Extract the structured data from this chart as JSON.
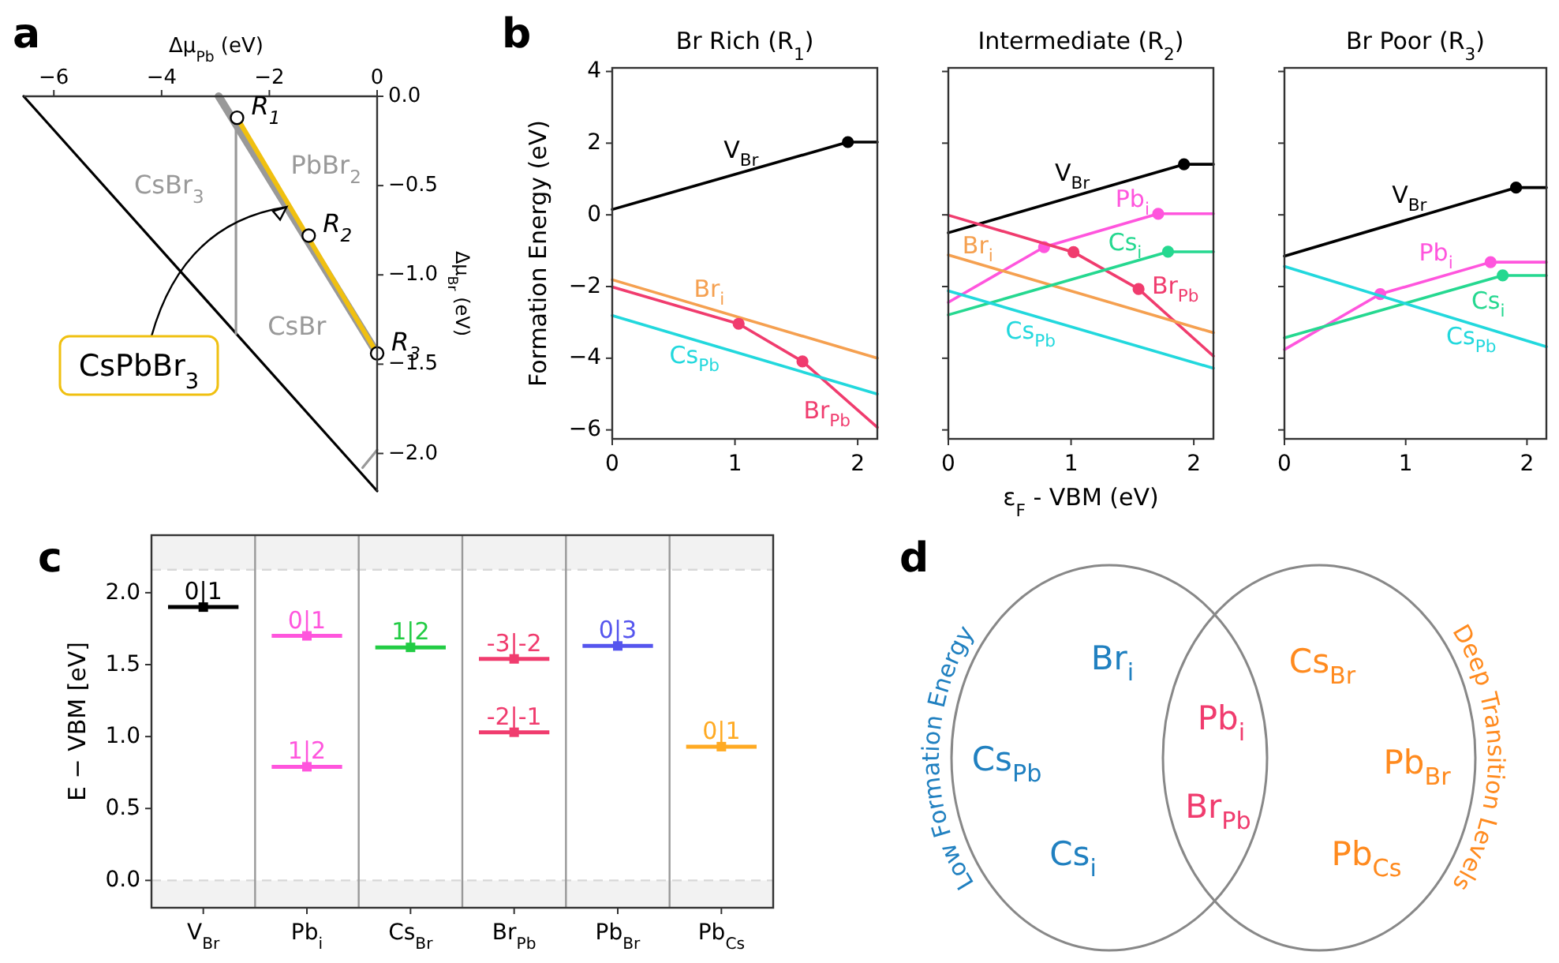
{
  "chart_data": [
    {
      "type": "line",
      "xlabel": "Δμ$_{Pb}$ (eV)",
      "ylabel": "Δμ$_{Br}$ (eV)",
      "xlim": [
        -6.56,
        0
      ],
      "xticks": [
        {
          "value": -6,
          "label": "−6"
        },
        {
          "value": -4,
          "label": "−4"
        },
        {
          "value": -2,
          "label": "−2"
        },
        0
      ],
      "ylim": [
        -2.21,
        0
      ],
      "yticks": [
        {
          "value": 0,
          "label": "0.0"
        },
        {
          "value": -0.5,
          "label": "−0.5"
        },
        {
          "value": -1,
          "label": "−1.0"
        },
        {
          "value": -1.5,
          "label": "−1.5"
        },
        {
          "value": -2,
          "label": "−2.0"
        }
      ],
      "annotations": [
        "a",
        "CsBr$_{3}$",
        "PbBr$_{2}$",
        "CsBr",
        {
          "text": "CsPbBr$_{3}$",
          "x": -1.68,
          "y": -0.62
        },
        {
          "text": "R$_{1}$",
          "x": -2.6,
          "y": -0.12
        },
        {
          "text": "R$_{2}$",
          "x": -1.27,
          "y": -0.78
        },
        {
          "text": "R$_{3}$",
          "x": 0,
          "y": -1.44
        }
      ],
      "series": [
        {
          "color": "#000000",
          "x": [
            -6.56,
            0
          ],
          "values": [
            0,
            -2.21
          ]
        },
        {
          "color": "#999999",
          "x": [
            -2.94,
            0
          ],
          "values": [
            0,
            -1.44
          ]
        },
        {
          "color": "#999999",
          "x": [
            -2.62,
            -2.62
          ],
          "values": [
            -0.12,
            -1.33
          ]
        },
        {
          "color": "#999999",
          "x": [
            -0.27,
            0
          ],
          "values": [
            -2.08,
            -1.98
          ]
        },
        {
          "color": "#f0c010",
          "x": [
            -2.6,
            0
          ],
          "values": [
            -0.12,
            -1.44
          ]
        },
        {
          "type": "scatter",
          "marker": "circle",
          "color": "#ffffff",
          "x": [
            -2.6,
            -1.27,
            0
          ],
          "values": [
            -0.12,
            -0.78,
            -1.44
          ]
        }
      ]
    },
    {
      "type": "line",
      "title": "Br Rich (R$_{1}$)",
      "ylabel": "Formation Energy (eV)",
      "xlim": [
        0,
        2.16
      ],
      "xticks": [
        0,
        1,
        2
      ],
      "ylim": [
        -6.25,
        4.1
      ],
      "yticks": [
        {
          "value": -6,
          "label": "−6"
        },
        {
          "value": -4,
          "label": "−4"
        },
        {
          "value": -2,
          "label": "−2"
        },
        0,
        2,
        4
      ],
      "annotations": [
        "b"
      ],
      "series": [
        {
          "name": "V$_{Br}$",
          "color": "#000000",
          "x": [
            0,
            1.92,
            2.16
          ],
          "values": [
            0.15,
            2.03,
            2.03
          ]
        },
        {
          "type": "scatter",
          "marker": "circle",
          "color": "#000000",
          "x": [
            1.92
          ],
          "values": [
            2.03
          ]
        },
        {
          "name": "Br$_{i}$",
          "color": "#f5a050",
          "x": [
            0,
            2.16
          ],
          "values": [
            -1.81,
            -4.0
          ]
        },
        {
          "name": "Br$_{Pb}$",
          "color": "#f03c6e",
          "x": [
            0,
            1.03,
            1.55,
            2.16
          ],
          "values": [
            -2.01,
            -3.04,
            -4.09,
            -5.93
          ]
        },
        {
          "type": "scatter",
          "marker": "circle",
          "color": "#f03c6e",
          "x": [
            1.03,
            1.55
          ],
          "values": [
            -3.04,
            -4.09
          ]
        },
        {
          "name": "Cs$_{Pb}$",
          "color": "#22d8dd",
          "x": [
            0,
            2.16
          ],
          "values": [
            -2.81,
            -5.0
          ]
        }
      ]
    },
    {
      "type": "line",
      "title": "Intermediate (R$_{2}$)",
      "xlabel": "ε$_{F}$ - VBM (eV)",
      "xlim": [
        0,
        2.16
      ],
      "xticks": [
        0,
        1,
        2
      ],
      "ylim": [
        -6.25,
        4.1
      ],
      "yticks": [
        -6,
        -4,
        -2,
        0,
        2,
        4
      ],
      "tick_labels": "x",
      "series": [
        {
          "name": "V$_{Br}$",
          "color": "#000000",
          "x": [
            0,
            1.92,
            2.16
          ],
          "values": [
            -0.5,
            1.41,
            1.41
          ]
        },
        {
          "type": "scatter",
          "marker": "circle",
          "color": "#000000",
          "x": [
            1.92
          ],
          "values": [
            1.41
          ]
        },
        {
          "name": "Pb$_{i}$",
          "color": "#ff55dd",
          "x": [
            0,
            0.78,
            1.71,
            2.16
          ],
          "values": [
            -2.44,
            -0.9,
            0.03,
            0.03
          ]
        },
        {
          "type": "scatter",
          "marker": "circle",
          "color": "#ff55dd",
          "x": [
            0.78,
            1.71
          ],
          "values": [
            -0.9,
            0.03
          ]
        },
        {
          "name": "Br$_{Pb}$",
          "color": "#f03c6e",
          "x": [
            0,
            1.02,
            1.55,
            2.16
          ],
          "values": [
            -0.01,
            -1.04,
            -2.07,
            -3.94
          ]
        },
        {
          "type": "scatter",
          "marker": "circle",
          "color": "#f03c6e",
          "x": [
            1.02,
            1.55
          ],
          "values": [
            -1.04,
            -2.07
          ]
        },
        {
          "name": "Br$_{i}$",
          "color": "#f5a050",
          "x": [
            0,
            2.16
          ],
          "values": [
            -1.12,
            -3.29
          ]
        },
        {
          "name": "Cs$_{i}$",
          "color": "#25d890",
          "x": [
            0,
            1.79,
            2.16
          ],
          "values": [
            -2.79,
            -1.03,
            -1.03
          ]
        },
        {
          "type": "scatter",
          "marker": "circle",
          "color": "#25d890",
          "x": [
            1.79
          ],
          "values": [
            -1.03
          ]
        },
        {
          "name": "Cs$_{Pb}$",
          "color": "#22d8dd",
          "x": [
            0,
            2.16
          ],
          "values": [
            -2.12,
            -4.28
          ]
        }
      ]
    },
    {
      "type": "line",
      "title": "Br Poor (R$_{3}$)",
      "xlim": [
        0,
        2.16
      ],
      "xticks": [
        0,
        1,
        2
      ],
      "ylim": [
        -6.25,
        4.1
      ],
      "yticks": [
        -6,
        -4,
        -2,
        0,
        2,
        4
      ],
      "tick_labels": "x",
      "series": [
        {
          "name": "V$_{Br}$",
          "color": "#000000",
          "x": [
            0,
            1.91,
            2.16
          ],
          "values": [
            -1.15,
            0.76,
            0.76
          ]
        },
        {
          "type": "scatter",
          "marker": "circle",
          "color": "#000000",
          "x": [
            1.91
          ],
          "values": [
            0.76
          ]
        },
        {
          "name": "Pb$_{i}$",
          "color": "#ff55dd",
          "x": [
            0,
            0.79,
            1.7,
            2.16
          ],
          "values": [
            -3.76,
            -2.21,
            -1.32,
            -1.32
          ]
        },
        {
          "type": "scatter",
          "marker": "circle",
          "color": "#ff55dd",
          "x": [
            0.79,
            1.7
          ],
          "values": [
            -2.21,
            -1.32
          ]
        },
        {
          "name": "Cs$_{i}$",
          "color": "#25d890",
          "x": [
            0,
            1.8,
            2.16
          ],
          "values": [
            -3.43,
            -1.69,
            -1.69
          ]
        },
        {
          "type": "scatter",
          "marker": "circle",
          "color": "#25d890",
          "x": [
            1.8
          ],
          "values": [
            -1.69
          ]
        },
        {
          "name": "Cs$_{Pb}$",
          "color": "#22d8dd",
          "x": [
            0,
            2.16
          ],
          "values": [
            -1.44,
            -3.68
          ]
        }
      ]
    },
    {
      "type": "scatter",
      "marker": "square",
      "ylabel": "E − VBM [eV]",
      "categories": [
        "V$_{Br}$",
        "Pb$_{i}$",
        "Cs$_{Br}$",
        "Br$_{Pb}$",
        "Pb$_{Br}$",
        "Pb$_{Cs}$"
      ],
      "ylim": [
        -0.19,
        2.4
      ],
      "yticks": [
        {
          "value": 0,
          "label": "0.0"
        },
        {
          "value": 0.5,
          "label": "0.5"
        },
        {
          "value": 1,
          "label": "1.0"
        },
        {
          "value": 1.5,
          "label": "1.5"
        },
        {
          "value": 2,
          "label": "2.0"
        }
      ],
      "annotations": [
        "c"
      ],
      "bands": [
        {
          "axis": "y",
          "from": 2.16,
          "to": 2.4,
          "color": "#f2f2f2"
        },
        {
          "axis": "y",
          "from": -0.19,
          "to": 0,
          "color": "#f2f2f2"
        }
      ],
      "ref_lines": [
        {
          "axis": "y",
          "value": 2.16,
          "color": "#d8d8d8",
          "line_style": "dashed"
        },
        {
          "axis": "y",
          "value": 0,
          "color": "#d8d8d8",
          "line_style": "dashed"
        }
      ],
      "series": [
        {
          "colors": [
            "#000000",
            "#ff55dd",
            "#22cc44",
            "#f03c6e",
            "#5555ee",
            "#ffaa22"
          ],
          "values": [
            1.9,
            1.7,
            1.62,
            1.54,
            1.63,
            0.93
          ],
          "value_labels": [
            "0|1",
            "0|1",
            "1|2",
            "-3|-2",
            "0|3",
            "0|1"
          ]
        },
        {
          "colors": [
            null,
            "#ff55dd",
            null,
            "#f03c6e",
            null,
            null
          ],
          "values": [
            null,
            0.79,
            null,
            1.03,
            null,
            null
          ],
          "value_labels": [
            null,
            "1|2",
            null,
            "-2|-1",
            null,
            null
          ]
        }
      ]
    },
    {
      "type": "other",
      "annotations": [
        "d",
        "Low Formation Energy",
        "Deep Transition Levels",
        "Br$_{i}$",
        "Cs$_{Pb}$",
        "Cs$_{i}$",
        "Pb$_{i}$",
        "Br$_{Pb}$",
        "Cs$_{Br}$",
        "Pb$_{Br}$",
        "Pb$_{Cs}$"
      ]
    }
  ]
}
